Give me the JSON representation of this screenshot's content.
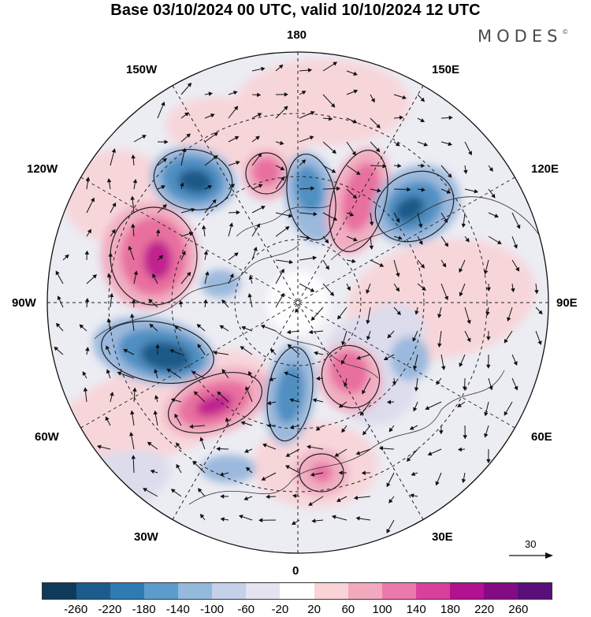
{
  "title": "Base 03/10/2024 00 UTC, valid 10/10/2024 12 UTC",
  "brand": "MODES",
  "brand_mark": "©",
  "longitude_labels": {
    "n180": "180",
    "w150": "150W",
    "e150": "150E",
    "w120": "120W",
    "e120": "120E",
    "w90": "90W",
    "e90": "90E",
    "w60": "60W",
    "e60": "60E",
    "w30": "30W",
    "e30": "30E",
    "s0": "0"
  },
  "reference_vector": {
    "value": "30"
  },
  "colorbar": {
    "ticks": [
      "-260",
      "-220",
      "-180",
      "-140",
      "-100",
      "-60",
      "-20",
      "20",
      "60",
      "100",
      "140",
      "180",
      "220",
      "260"
    ],
    "colors": [
      "#0e3b5c",
      "#1a5d8c",
      "#2e7bb4",
      "#5a9ccb",
      "#93b9dc",
      "#c4d1e8",
      "#e3e3f1",
      "#ffffff",
      "#f9d3d6",
      "#f3a9bd",
      "#ec79ad",
      "#d9409d",
      "#b2128f",
      "#850b85",
      "#5a0f7a"
    ]
  },
  "anomaly_colors": {
    "neg_strong": "#1d5a88",
    "neg_mid": "#4f8fc2",
    "neg_weak": "#9bb9dd",
    "neg_faint": "#dcdcec",
    "pos_faint": "#f7d6da",
    "pos_weak": "#f1aec2",
    "pos_mid": "#e8709f",
    "pos_strong": "#c0228f"
  }
}
